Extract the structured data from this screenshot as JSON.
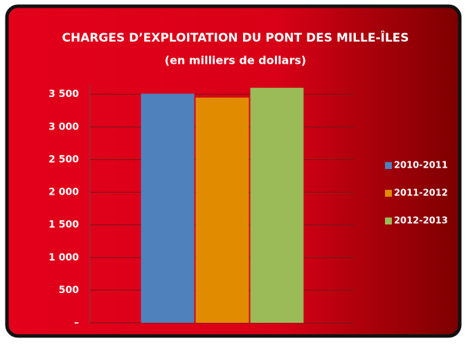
{
  "chart_data": {
    "type": "bar",
    "title": "CHARGES D’EXPLOITATION DU PONT DES MILLE-ÎLES",
    "subtitle": "(en milliers de dollars)",
    "categories": [
      null
    ],
    "series": [
      {
        "name": "2010-2011",
        "color": "#4f81bd",
        "values": [
          3510
        ]
      },
      {
        "name": "2011-2012",
        "color": "#e08b00",
        "values": [
          3450
        ]
      },
      {
        "name": "2012-2013",
        "color": "#9bbb59",
        "values": [
          3600
        ]
      }
    ],
    "ylim": [
      0,
      3650
    ],
    "yticks": [
      {
        "value": 0,
        "label": "–"
      },
      {
        "value": 500,
        "label": "500"
      },
      {
        "value": 1000,
        "label": "1 000"
      },
      {
        "value": 1500,
        "label": "1 500"
      },
      {
        "value": 2000,
        "label": "2 000"
      },
      {
        "value": 2500,
        "label": "2  500"
      },
      {
        "value": 3000,
        "label": "3 000"
      },
      {
        "value": 3500,
        "label": "3 500"
      }
    ],
    "grid": true,
    "legend": "right"
  }
}
